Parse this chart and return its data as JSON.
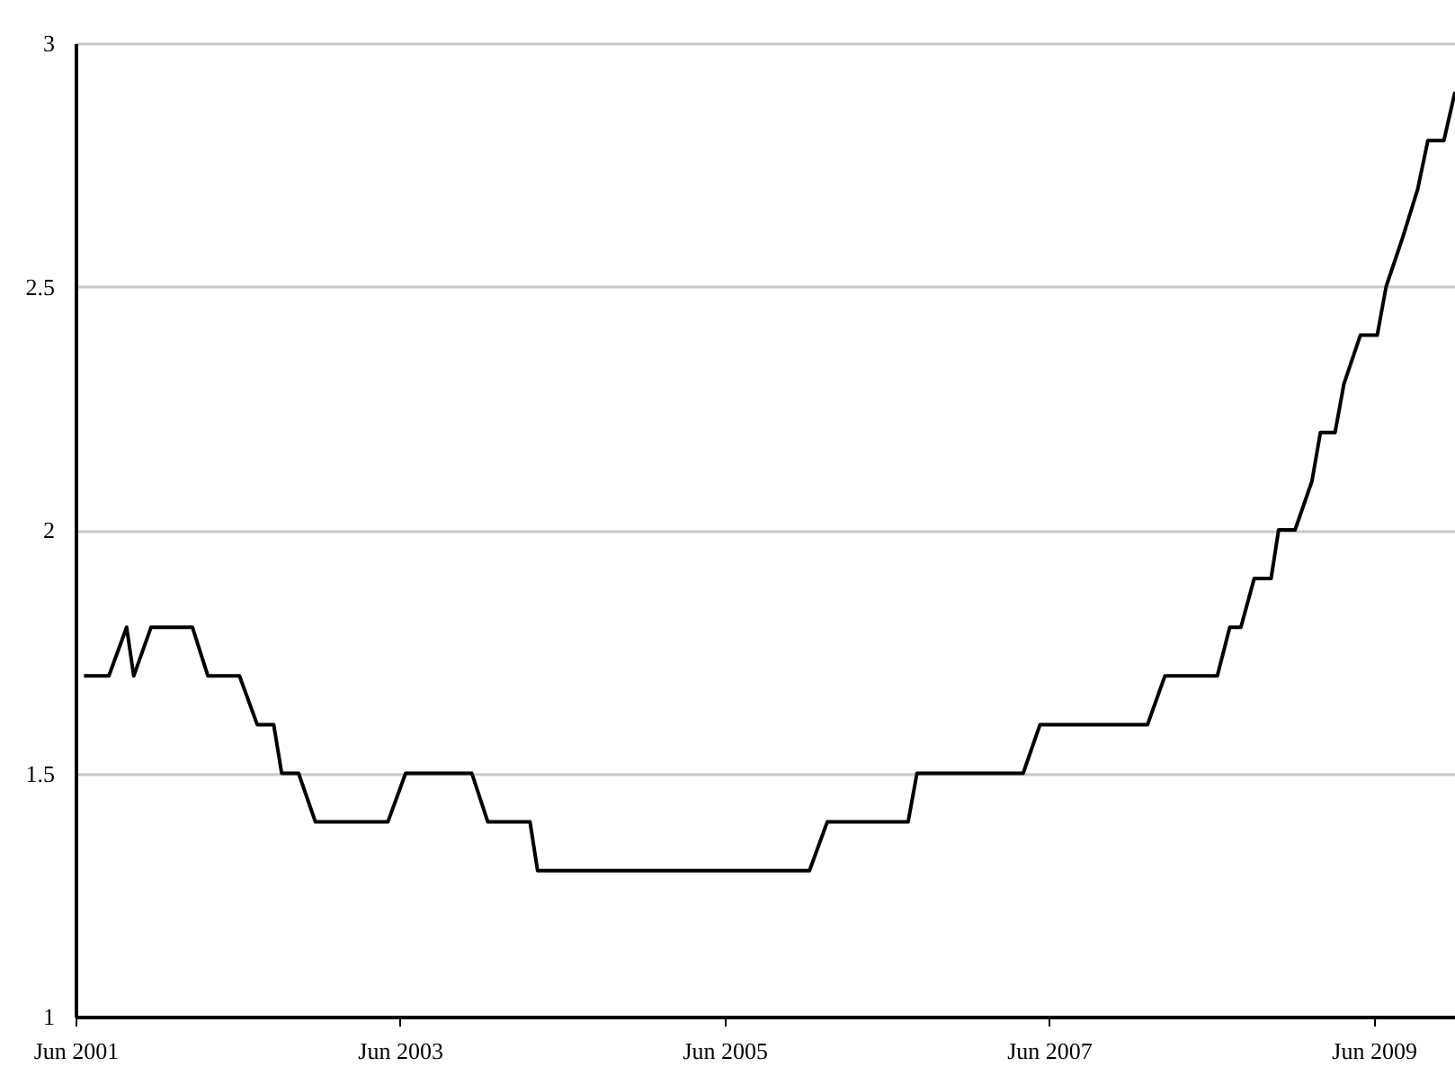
{
  "chart_data": {
    "type": "line",
    "x": [
      "2001-06-20",
      "2001-08-15",
      "2001-09-24",
      "2001-10-10",
      "2001-11-18",
      "2002-02-19",
      "2002-03-26",
      "2002-06-05",
      "2002-07-15",
      "2002-08-21",
      "2002-09-08",
      "2002-10-16",
      "2002-11-23",
      "2003-05-05",
      "2003-06-14",
      "2003-11-10",
      "2003-12-16",
      "2004-03-20",
      "2004-04-06",
      "2005-12-09",
      "2006-01-18",
      "2006-07-19",
      "2006-08-08",
      "2007-04-04",
      "2007-05-12",
      "2008-01-09",
      "2008-02-17",
      "2008-06-14",
      "2008-07-12",
      "2008-08-06",
      "2008-09-05",
      "2008-10-13",
      "2008-10-30",
      "2008-12-06",
      "2009-01-13",
      "2009-02-01",
      "2009-03-06",
      "2009-03-26",
      "2009-05-02",
      "2009-06-09",
      "2009-06-29",
      "2009-08-05",
      "2009-09-08",
      "2009-10-01",
      "2009-11-06",
      "2009-12-01"
    ],
    "series": [
      {
        "color": "#000000",
        "values": [
          1.7,
          1.7,
          1.8,
          1.7,
          1.8,
          1.8,
          1.7,
          1.7,
          1.6,
          1.6,
          1.5,
          1.5,
          1.4,
          1.4,
          1.5,
          1.5,
          1.4,
          1.4,
          1.3,
          1.3,
          1.4,
          1.4,
          1.5,
          1.5,
          1.6,
          1.6,
          1.7,
          1.7,
          1.8,
          1.8,
          1.9,
          1.9,
          2.0,
          2.0,
          2.1,
          2.2,
          2.2,
          2.3,
          2.4,
          2.4,
          2.5,
          2.6,
          2.7,
          2.8,
          2.8,
          2.9
        ]
      }
    ],
    "xlim": [
      "2001-06-01",
      "2009-12-01"
    ],
    "xticks": [
      {
        "value": "2001-06-01",
        "label": "Jun 2001"
      },
      {
        "value": "2003-06-01",
        "label": "Jun 2003"
      },
      {
        "value": "2005-06-01",
        "label": "Jun 2005"
      },
      {
        "value": "2007-06-01",
        "label": "Jun 2007"
      },
      {
        "value": "2009-06-01",
        "label": "Jun 2009"
      }
    ],
    "ylim": [
      1,
      3
    ],
    "yticks": [
      1,
      1.5,
      2,
      2.5,
      3
    ],
    "grid": "y",
    "marker": "none",
    "line_style": "solid"
  }
}
